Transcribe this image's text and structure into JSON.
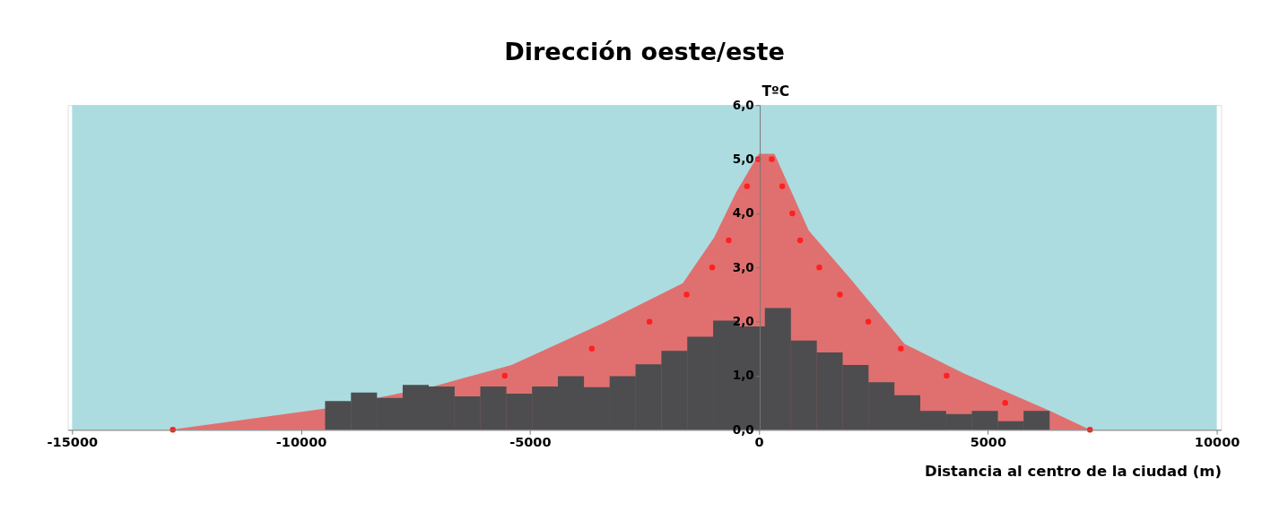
{
  "chart_data": {
    "type": "area",
    "title": "Dirección oeste/este",
    "xlabel": "Distancia al centro de la ciudad (m)",
    "ylabel": "TºC",
    "xlim": [
      -15000,
      10000
    ],
    "xticks": [
      -15000,
      -10000,
      -5000,
      0,
      5000,
      10000
    ],
    "ylim": [
      0,
      6
    ],
    "yticks": [
      {
        "value": 0,
        "label": "0,0"
      },
      {
        "value": 1,
        "label": "1,0"
      },
      {
        "value": 2,
        "label": "2,0"
      },
      {
        "value": 3,
        "label": "3,0"
      },
      {
        "value": 4,
        "label": "4,0"
      },
      {
        "value": 5,
        "label": "5,0"
      },
      {
        "value": 6,
        "label": "6,0"
      }
    ],
    "grid": false,
    "bands": [
      {
        "axis": "x",
        "from": -15000,
        "to": 10000,
        "color": "#acdcdf"
      }
    ],
    "series": [
      {
        "color": "#e07070",
        "x": [
          -12850,
          -9490,
          -7116,
          -5400,
          -3430,
          -1660,
          -980,
          -490,
          0,
          340,
          1090,
          1960,
          3180,
          4480,
          6360,
          7230
        ],
        "values": [
          0,
          0.39,
          0.8,
          1.2,
          1.96,
          2.71,
          3.55,
          4.4,
          5.1,
          5.1,
          3.68,
          2.83,
          1.59,
          1.04,
          0.35,
          0
        ]
      },
      {
        "type": "bar",
        "color": "#4d4d4f",
        "x": [
          -9190,
          -8625,
          -8060,
          -7495,
          -6930,
          -6365,
          -5800,
          -5235,
          -4670,
          -4105,
          -3540,
          -2975,
          -2410,
          -1845,
          -1280,
          -715,
          -150,
          415,
          980,
          1545,
          2110,
          2675,
          3240,
          3805,
          4370,
          4935,
          5500,
          6065
        ],
        "values": [
          0.53,
          0.69,
          0.59,
          0.83,
          0.8,
          0.62,
          0.8,
          0.67,
          0.8,
          0.99,
          0.79,
          0.99,
          1.21,
          1.46,
          1.72,
          2.02,
          1.91,
          2.25,
          1.65,
          1.43,
          1.2,
          0.88,
          0.64,
          0.35,
          0.29,
          0.35,
          0.16,
          0.35
        ]
      },
      {
        "type": "scatter",
        "color": "#ff2020",
        "marker": "circle",
        "x": [
          -12800,
          -5550,
          -3650,
          -2390,
          -1580,
          -1020,
          -660,
          -260,
          -20,
          280,
          510,
          730,
          900,
          1320,
          1770,
          2390,
          3100,
          4100,
          5380,
          7230
        ],
        "values": [
          0,
          1.0,
          1.5,
          2.0,
          2.5,
          3.0,
          3.5,
          4.5,
          5.0,
          5.0,
          4.5,
          4.0,
          3.5,
          3.0,
          2.5,
          2.0,
          1.5,
          1.0,
          0.5,
          0
        ]
      }
    ]
  }
}
